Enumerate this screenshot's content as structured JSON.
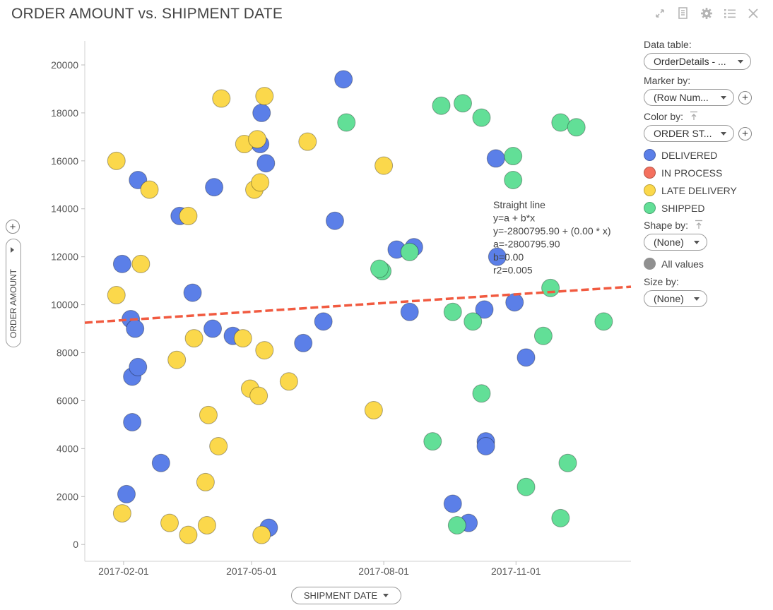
{
  "title": "ORDER AMOUNT vs. SHIPMENT DATE",
  "toolbar": {
    "icons": [
      "expand-icon",
      "document-icon",
      "gear-icon",
      "list-icon",
      "close-icon"
    ]
  },
  "y_axis_selector": {
    "label": "ORDER AMOUNT"
  },
  "x_axis_selector": {
    "label": "SHIPMENT DATE"
  },
  "legend": {
    "data_table_heading": "Data table:",
    "data_table_value": "OrderDetails - ...",
    "marker_by_heading": "Marker by:",
    "marker_by_value": "(Row Num...",
    "color_by_heading": "Color by:",
    "color_by_value": "ORDER ST...",
    "categories": [
      {
        "label": "DELIVERED",
        "color": "#5b7fe8"
      },
      {
        "label": "IN PROCESS",
        "color": "#f4705e"
      },
      {
        "label": "LATE DELIVERY",
        "color": "#fbd84b"
      },
      {
        "label": "SHIPPED",
        "color": "#62df97"
      }
    ],
    "shape_by_heading": "Shape by:",
    "shape_by_value": "(None)",
    "all_values_label": "All values",
    "size_by_heading": "Size by:",
    "size_by_value": "(None)"
  },
  "chart_data": {
    "type": "scatter",
    "title": "ORDER AMOUNT vs. SHIPMENT DATE",
    "xlabel": "SHIPMENT DATE",
    "ylabel": "ORDER AMOUNT",
    "x_range": [
      "2017-01-05",
      "2018-01-20"
    ],
    "ylim": [
      -700,
      21000
    ],
    "x_ticks": [
      "2017-02-01",
      "2017-05-01",
      "2017-08-01",
      "2017-11-01"
    ],
    "y_ticks": [
      0,
      2000,
      4000,
      6000,
      8000,
      10000,
      12000,
      14000,
      16000,
      18000,
      20000
    ],
    "grid": false,
    "fit_line": {
      "color": "#f15a40",
      "label_lines": [
        "Straight line",
        "y=a + b*x",
        "y=-2800795.90 + (0.00 * x)",
        "a=-2800795.90",
        "b=0.00",
        "r2=0.005"
      ],
      "y_at_start": 9250,
      "y_at_end": 10750
    },
    "series": [
      {
        "name": "DELIVERED",
        "color": "#5b7fe8",
        "points": [
          {
            "x": "2017-01-31",
            "y": 11700
          },
          {
            "x": "2017-02-03",
            "y": 2100
          },
          {
            "x": "2017-02-06",
            "y": 9400
          },
          {
            "x": "2017-02-07",
            "y": 7000
          },
          {
            "x": "2017-02-07",
            "y": 5100
          },
          {
            "x": "2017-02-09",
            "y": 9000
          },
          {
            "x": "2017-02-11",
            "y": 7400
          },
          {
            "x": "2017-02-11",
            "y": 15200
          },
          {
            "x": "2017-02-27",
            "y": 3400
          },
          {
            "x": "2017-03-12",
            "y": 13700
          },
          {
            "x": "2017-03-21",
            "y": 10500
          },
          {
            "x": "2017-04-05",
            "y": 14900
          },
          {
            "x": "2017-04-04",
            "y": 9000
          },
          {
            "x": "2017-04-18",
            "y": 8700
          },
          {
            "x": "2017-05-08",
            "y": 18000
          },
          {
            "x": "2017-05-07",
            "y": 16700
          },
          {
            "x": "2017-05-11",
            "y": 15900
          },
          {
            "x": "2017-05-13",
            "y": 700
          },
          {
            "x": "2017-06-06",
            "y": 8400
          },
          {
            "x": "2017-06-20",
            "y": 9300
          },
          {
            "x": "2017-06-28",
            "y": 13500
          },
          {
            "x": "2017-07-04",
            "y": 19400
          },
          {
            "x": "2017-08-10",
            "y": 12300
          },
          {
            "x": "2017-08-19",
            "y": 9700
          },
          {
            "x": "2017-08-22",
            "y": 12400
          },
          {
            "x": "2017-09-18",
            "y": 1700
          },
          {
            "x": "2017-09-29",
            "y": 900
          },
          {
            "x": "2017-10-10",
            "y": 9800
          },
          {
            "x": "2017-10-11",
            "y": 4300
          },
          {
            "x": "2017-10-11",
            "y": 4100
          },
          {
            "x": "2017-10-18",
            "y": 16100
          },
          {
            "x": "2017-10-19",
            "y": 12000
          },
          {
            "x": "2017-10-31",
            "y": 10100
          },
          {
            "x": "2017-11-08",
            "y": 7800
          }
        ]
      },
      {
        "name": "IN PROCESS",
        "color": "#f4705e",
        "points": []
      },
      {
        "name": "LATE DELIVERY",
        "color": "#fbd84b",
        "points": [
          {
            "x": "2017-01-27",
            "y": 16000
          },
          {
            "x": "2017-01-27",
            "y": 10400
          },
          {
            "x": "2017-01-31",
            "y": 1300
          },
          {
            "x": "2017-02-13",
            "y": 11700
          },
          {
            "x": "2017-02-19",
            "y": 14800
          },
          {
            "x": "2017-03-05",
            "y": 900
          },
          {
            "x": "2017-03-10",
            "y": 7700
          },
          {
            "x": "2017-03-18",
            "y": 400
          },
          {
            "x": "2017-03-18",
            "y": 13700
          },
          {
            "x": "2017-03-22",
            "y": 8600
          },
          {
            "x": "2017-03-30",
            "y": 2600
          },
          {
            "x": "2017-03-31",
            "y": 800
          },
          {
            "x": "2017-04-01",
            "y": 5400
          },
          {
            "x": "2017-04-08",
            "y": 4100
          },
          {
            "x": "2017-04-10",
            "y": 18600
          },
          {
            "x": "2017-04-25",
            "y": 8600
          },
          {
            "x": "2017-04-26",
            "y": 16700
          },
          {
            "x": "2017-04-30",
            "y": 6500
          },
          {
            "x": "2017-05-03",
            "y": 14800
          },
          {
            "x": "2017-05-05",
            "y": 16900
          },
          {
            "x": "2017-05-07",
            "y": 15100
          },
          {
            "x": "2017-05-06",
            "y": 6200
          },
          {
            "x": "2017-05-08",
            "y": 400
          },
          {
            "x": "2017-05-10",
            "y": 18700
          },
          {
            "x": "2017-05-10",
            "y": 8100
          },
          {
            "x": "2017-05-27",
            "y": 6800
          },
          {
            "x": "2017-06-09",
            "y": 16800
          },
          {
            "x": "2017-07-25",
            "y": 5600
          },
          {
            "x": "2017-08-01",
            "y": 15800
          }
        ]
      },
      {
        "name": "SHIPPED",
        "color": "#62df97",
        "points": [
          {
            "x": "2017-07-06",
            "y": 17600
          },
          {
            "x": "2017-07-31",
            "y": 11400
          },
          {
            "x": "2017-07-29",
            "y": 11500
          },
          {
            "x": "2017-08-19",
            "y": 12200
          },
          {
            "x": "2017-09-04",
            "y": 4300
          },
          {
            "x": "2017-09-10",
            "y": 18300
          },
          {
            "x": "2017-09-18",
            "y": 9700
          },
          {
            "x": "2017-09-21",
            "y": 800
          },
          {
            "x": "2017-09-25",
            "y": 18400
          },
          {
            "x": "2017-10-02",
            "y": 9300
          },
          {
            "x": "2017-10-08",
            "y": 6300
          },
          {
            "x": "2017-10-08",
            "y": 17800
          },
          {
            "x": "2017-10-30",
            "y": 16200
          },
          {
            "x": "2017-10-30",
            "y": 15200
          },
          {
            "x": "2017-11-08",
            "y": 2400
          },
          {
            "x": "2017-11-20",
            "y": 8700
          },
          {
            "x": "2017-11-25",
            "y": 10700
          },
          {
            "x": "2017-12-02",
            "y": 1100
          },
          {
            "x": "2017-12-02",
            "y": 17600
          },
          {
            "x": "2017-12-07",
            "y": 3400
          },
          {
            "x": "2017-12-13",
            "y": 17400
          },
          {
            "x": "2018-01-01",
            "y": 9300
          }
        ]
      }
    ]
  }
}
